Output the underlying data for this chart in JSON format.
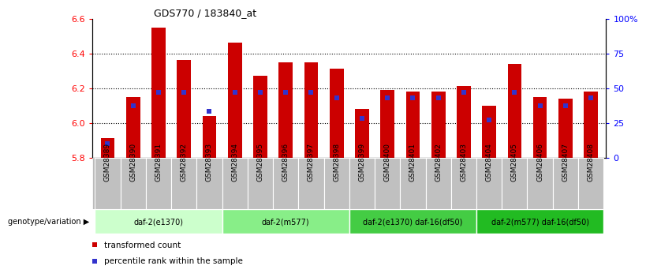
{
  "title": "GDS770 / 183840_at",
  "samples": [
    "GSM28389",
    "GSM28390",
    "GSM28391",
    "GSM28392",
    "GSM28393",
    "GSM28394",
    "GSM28395",
    "GSM28396",
    "GSM28397",
    "GSM28398",
    "GSM28399",
    "GSM28400",
    "GSM28401",
    "GSM28402",
    "GSM28403",
    "GSM28404",
    "GSM28405",
    "GSM28406",
    "GSM28407",
    "GSM28408"
  ],
  "transformed_count": [
    5.91,
    6.15,
    6.55,
    6.36,
    6.04,
    6.46,
    6.27,
    6.35,
    6.35,
    6.31,
    6.08,
    6.19,
    6.18,
    6.18,
    6.21,
    6.1,
    6.34,
    6.15,
    6.14,
    6.18
  ],
  "percentile_rank": [
    0.1,
    0.37,
    0.47,
    0.47,
    0.33,
    0.47,
    0.47,
    0.47,
    0.47,
    0.43,
    0.28,
    0.43,
    0.43,
    0.43,
    0.47,
    0.27,
    0.47,
    0.37,
    0.37,
    0.43
  ],
  "ylim_left": [
    5.8,
    6.6
  ],
  "ylim_right": [
    0,
    100
  ],
  "yticks_left": [
    5.8,
    6.0,
    6.2,
    6.4,
    6.6
  ],
  "yticks_right": [
    0,
    25,
    50,
    75,
    100
  ],
  "ytick_labels_right": [
    "0",
    "25",
    "50",
    "75",
    "100%"
  ],
  "bar_color": "#cc0000",
  "dot_color": "#3333cc",
  "bar_width": 0.55,
  "groups": [
    {
      "label": "daf-2(e1370)",
      "start": 0,
      "end": 5,
      "color": "#ccffcc"
    },
    {
      "label": "daf-2(m577)",
      "start": 5,
      "end": 10,
      "color": "#88ee88"
    },
    {
      "label": "daf-2(e1370) daf-16(df50)",
      "start": 10,
      "end": 15,
      "color": "#44cc44"
    },
    {
      "label": "daf-2(m577) daf-16(df50)",
      "start": 15,
      "end": 20,
      "color": "#22bb22"
    }
  ],
  "group_label_prefix": "genotype/variation",
  "legend_items": [
    {
      "label": "transformed count",
      "color": "#cc0000"
    },
    {
      "label": "percentile rank within the sample",
      "color": "#3333cc"
    }
  ],
  "xtick_bg": "#cccccc",
  "grid_dotted_color": "#333333"
}
